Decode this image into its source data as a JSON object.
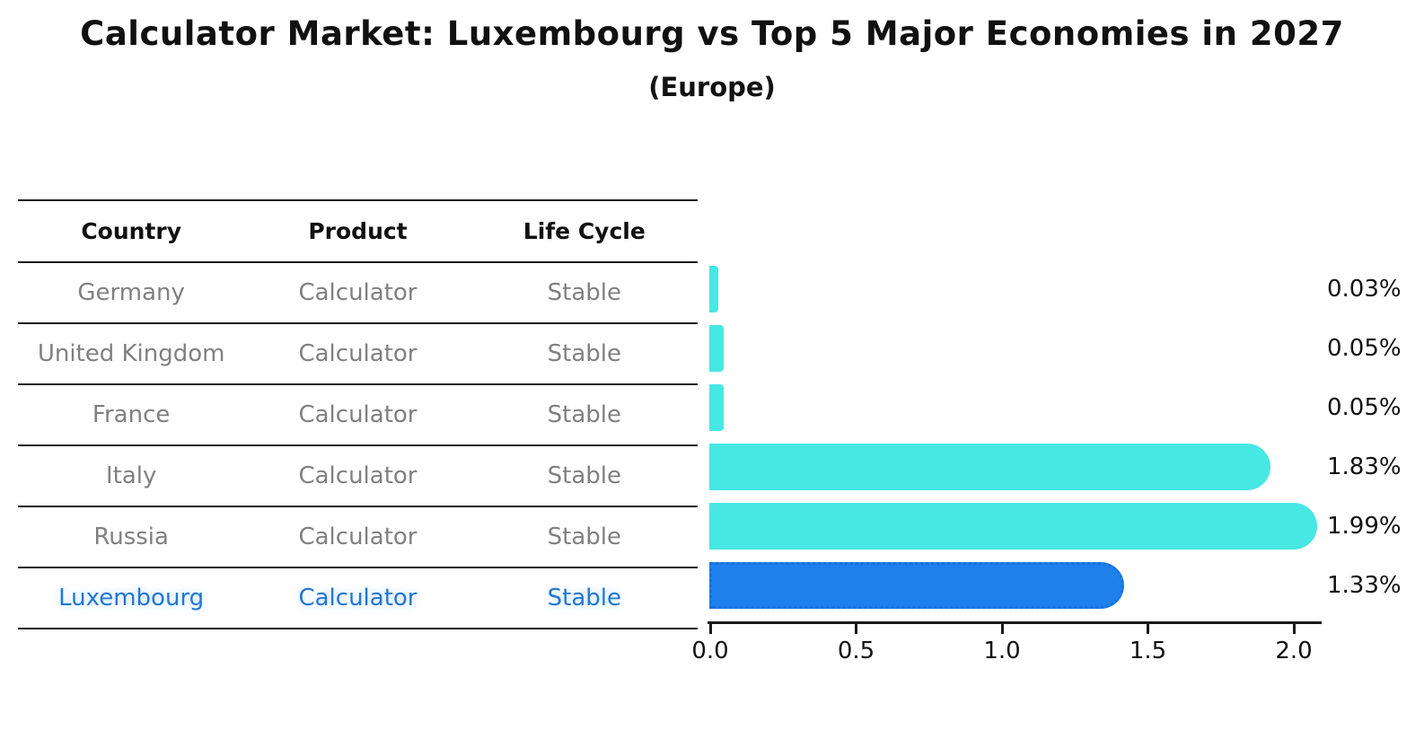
{
  "title": "Calculator Market: Luxembourg vs Top 5 Major Economies in 2027",
  "subtitle": "(Europe)",
  "table": {
    "headers": [
      "Country",
      "Product",
      "Life Cycle"
    ],
    "rows": [
      {
        "country": "Germany",
        "product": "Calculator",
        "life_cycle": "Stable",
        "highlighted": false
      },
      {
        "country": "United Kingdom",
        "product": "Calculator",
        "life_cycle": "Stable",
        "highlighted": false
      },
      {
        "country": "France",
        "product": "Calculator",
        "life_cycle": "Stable",
        "highlighted": false
      },
      {
        "country": "Italy",
        "product": "Calculator",
        "life_cycle": "Stable",
        "highlighted": false
      },
      {
        "country": "Russia",
        "product": "Calculator",
        "life_cycle": "Stable",
        "highlighted": false
      },
      {
        "country": "Luxembourg",
        "product": "Calculator",
        "life_cycle": "Stable",
        "highlighted": true
      }
    ]
  },
  "chart_data": {
    "type": "bar",
    "orientation": "horizontal",
    "title": "Calculator Market: Luxembourg vs Top 5 Major Economies in 2027",
    "subtitle": "(Europe)",
    "categories": [
      "Germany",
      "United Kingdom",
      "France",
      "Italy",
      "Russia",
      "Luxembourg"
    ],
    "values": [
      0.03,
      0.05,
      0.05,
      1.83,
      1.99,
      1.33
    ],
    "value_labels": [
      "0.03%",
      "0.05%",
      "0.05%",
      "1.83%",
      "1.99%",
      "1.33%"
    ],
    "xlim": [
      0,
      2.1
    ],
    "xticks": [
      0.0,
      0.5,
      1.0,
      1.5,
      2.0
    ],
    "xtick_labels": [
      "0.0",
      "0.5",
      "1.0",
      "1.5",
      "2.0"
    ],
    "grid": false,
    "legend": "none",
    "bar_color": "#47e7e3",
    "highlight_category": "Luxembourg",
    "highlight_bar_color": "#1e80ea",
    "highlight_border_color": "#1b70dc",
    "highlight_text_color": "#2277d3",
    "table_text_color": "#808080",
    "axis_color": "#1a1a1a"
  }
}
